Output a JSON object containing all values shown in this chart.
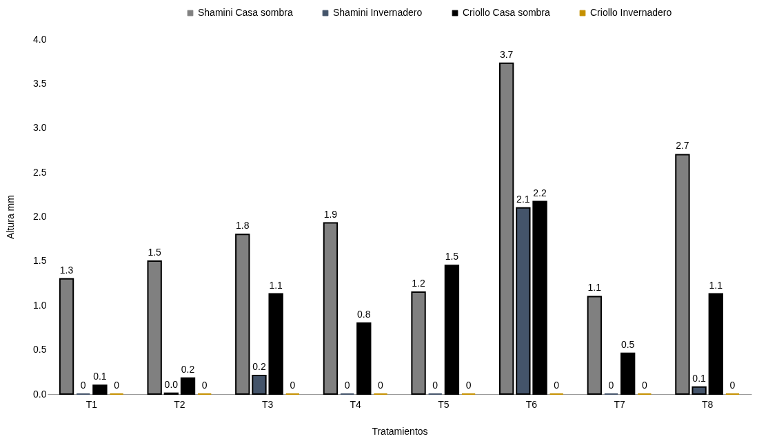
{
  "chart_data": {
    "type": "bar",
    "xlabel": "Tratamientos",
    "ylabel": "Altura mm",
    "categories": [
      "T1",
      "T2",
      "T3",
      "T4",
      "T5",
      "T6",
      "T7",
      "T8"
    ],
    "series": [
      {
        "name": "Shamini Casa sombra",
        "color": "#808080",
        "values": [
          1.3,
          1.5,
          1.8,
          1.93,
          1.15,
          3.73,
          1.1,
          2.7
        ],
        "value_labels": [
          "1.3",
          "1.5",
          "1.8",
          "1.9",
          "1.2",
          "3.7",
          "1.1",
          "2.7"
        ]
      },
      {
        "name": "Shamini Invernadero",
        "color": "#44546a",
        "values": [
          0,
          0.01,
          0.21,
          0,
          0,
          2.1,
          0,
          0.08
        ],
        "value_labels": [
          "0",
          "0.0",
          "0.2",
          "0",
          "0",
          "2.1",
          "0",
          "0.1"
        ]
      },
      {
        "name": "Criollo Casa sombra",
        "color": "#000000",
        "values": [
          0.1,
          0.18,
          1.13,
          0.8,
          1.45,
          2.17,
          0.46,
          1.13
        ],
        "value_labels": [
          "0.1",
          "0.2",
          "1.1",
          "0.8",
          "1.5",
          "2.2",
          "0.5",
          "1.1"
        ]
      },
      {
        "name": "Criollo Invernadero",
        "color": "#c59000",
        "values": [
          0,
          0,
          0,
          0,
          0,
          0,
          0,
          0
        ],
        "value_labels": [
          "0",
          "0",
          "0",
          "0",
          "0",
          "0",
          "0",
          "0"
        ]
      }
    ],
    "ylim": [
      0,
      4
    ],
    "yticks": [
      {
        "value": 0,
        "label": "0.0"
      },
      0.5,
      {
        "value": 1,
        "label": "1.0"
      },
      1.5,
      {
        "value": 2,
        "label": "2.0"
      },
      2.5,
      {
        "value": 3,
        "label": "3.0"
      },
      3.5,
      {
        "value": 4,
        "label": "4.0"
      }
    ],
    "grid": false,
    "legend": "top right"
  }
}
